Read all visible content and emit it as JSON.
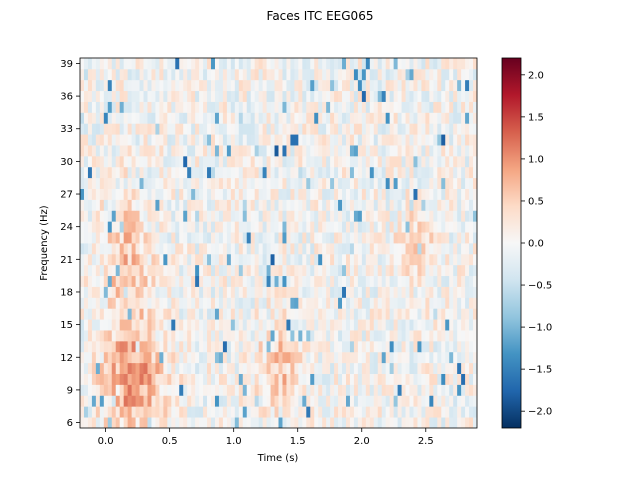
{
  "chart_data": {
    "type": "heatmap",
    "title": "Faces ITC EEG065",
    "xlabel": "Time (s)",
    "ylabel": "Frequency (Hz)",
    "xlim": [
      -0.2,
      2.9
    ],
    "ylim": [
      5.5,
      39.5
    ],
    "x_ticks": [
      0.0,
      0.5,
      1.0,
      1.5,
      2.0,
      2.5
    ],
    "x_tick_labels": [
      "0.0",
      "0.5",
      "1.0",
      "1.5",
      "2.0",
      "2.5"
    ],
    "y_ticks": [
      6,
      9,
      12,
      15,
      18,
      21,
      24,
      27,
      30,
      33,
      36,
      39
    ],
    "y_tick_labels": [
      "6",
      "9",
      "12",
      "15",
      "18",
      "21",
      "24",
      "27",
      "30",
      "33",
      "36",
      "39"
    ],
    "frequencies": [
      6,
      7,
      8,
      9,
      10,
      11,
      12,
      13,
      14,
      15,
      16,
      17,
      18,
      19,
      20,
      21,
      22,
      23,
      24,
      25,
      26,
      27,
      28,
      29,
      30,
      31,
      32,
      33,
      34,
      35,
      36,
      37,
      38,
      39
    ],
    "times": [
      -0.2,
      2.9
    ],
    "colormap": "RdBu_r",
    "colorbar": {
      "vmin": -2.2,
      "vmax": 2.2,
      "ticks": [
        -2.0,
        -1.5,
        -1.0,
        -0.5,
        0.0,
        0.5,
        1.0,
        1.5,
        2.0
      ],
      "tick_labels": [
        "−2.0",
        "−1.5",
        "−1.0",
        "−0.5",
        "0.0",
        "0.5",
        "1.0",
        "1.5",
        "2.0"
      ]
    },
    "approximate_features": [
      {
        "t_range": [
          0.0,
          0.4
        ],
        "f_range": [
          6,
          14
        ],
        "value": 1.0
      },
      {
        "t_range": [
          0.0,
          0.3
        ],
        "f_range": [
          15,
          26
        ],
        "value": 0.6
      },
      {
        "t_range": [
          1.2,
          1.5
        ],
        "f_range": [
          8,
          14
        ],
        "value": 0.6
      },
      {
        "t_range": [
          2.3,
          2.5
        ],
        "f_range": [
          20,
          24
        ],
        "value": 0.7
      },
      {
        "t_range": [
          -0.2,
          2.9
        ],
        "f_range": [
          6,
          39
        ],
        "value": 0.0,
        "note": "background"
      }
    ]
  }
}
